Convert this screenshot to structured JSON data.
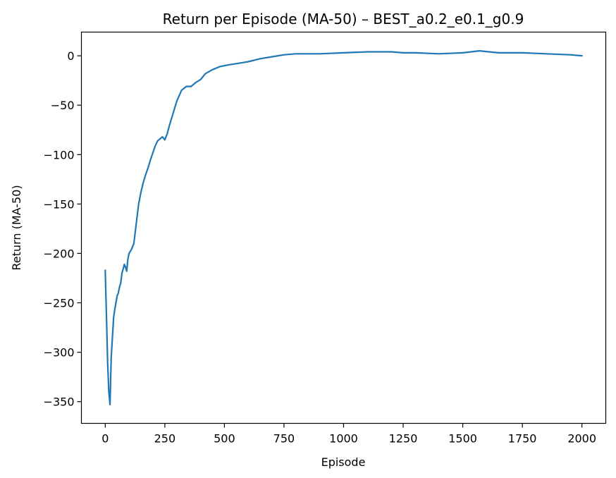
{
  "chart_data": {
    "type": "line",
    "title": "Return per Episode (MA-50) – BEST_a0.2_e0.1_g0.9",
    "xlabel": "Episode",
    "ylabel": "Return (MA-50)",
    "xlim": [
      -100,
      2100
    ],
    "ylim": [
      -372,
      24
    ],
    "x_ticks": [
      0,
      250,
      500,
      750,
      1000,
      1250,
      1500,
      1750,
      2000
    ],
    "y_ticks": [
      0,
      -50,
      -100,
      -150,
      -200,
      -250,
      -300,
      -350
    ],
    "grid": false,
    "line_color": "#1f77b4",
    "series": [
      {
        "x": [
          0,
          5,
          10,
          15,
          20,
          25,
          30,
          35,
          40,
          45,
          50,
          55,
          60,
          65,
          70,
          75,
          80,
          85,
          90,
          95,
          100,
          110,
          120,
          130,
          140,
          150,
          160,
          170,
          180,
          190,
          200,
          210,
          220,
          230,
          240,
          250,
          260,
          270,
          280,
          290,
          300,
          320,
          340,
          360,
          380,
          400,
          420,
          450,
          480,
          500,
          520,
          550,
          600,
          650,
          700,
          750,
          800,
          900,
          1000,
          1100,
          1150,
          1200,
          1250,
          1300,
          1400,
          1500,
          1570,
          1650,
          1750,
          1850,
          1950,
          2000
        ],
        "values": [
          -217,
          -262,
          -310,
          -340,
          -353,
          -305,
          -285,
          -265,
          -257,
          -250,
          -243,
          -240,
          -234,
          -230,
          -220,
          -216,
          -211,
          -214,
          -218,
          -206,
          -200,
          -196,
          -190,
          -170,
          -150,
          -138,
          -128,
          -120,
          -113,
          -105,
          -98,
          -91,
          -86,
          -84,
          -82,
          -85,
          -79,
          -70,
          -62,
          -54,
          -46,
          -35,
          -31,
          -31,
          -27,
          -24,
          -18,
          -14,
          -11,
          -10,
          -9,
          -8,
          -6,
          -3,
          -1,
          1,
          2,
          2,
          3,
          4,
          4,
          4,
          3,
          3,
          2,
          3,
          5,
          3,
          3,
          2,
          1,
          0
        ]
      }
    ]
  }
}
